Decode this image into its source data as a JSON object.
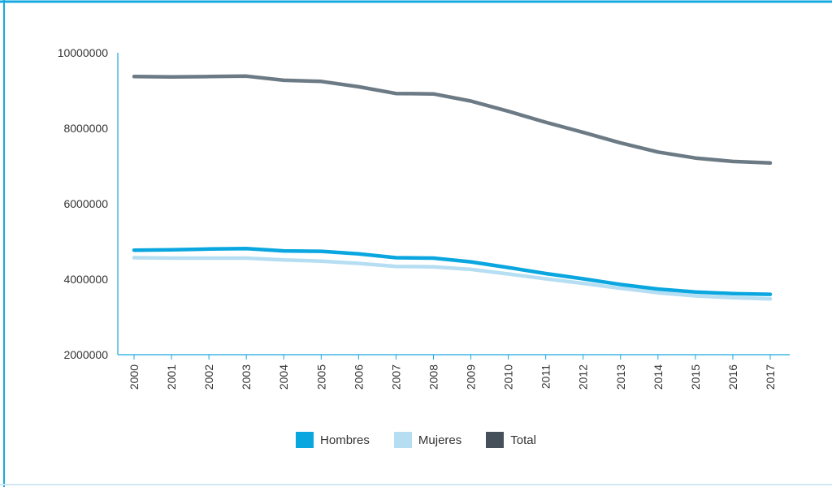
{
  "colors": {
    "border_top": "#16a9e0",
    "border_side": "#16a9e0",
    "border_bottom": "#cfe8f2",
    "axis": "#1aa7e0",
    "hombres": "#0aa6e0",
    "mujeres": "#b5def2",
    "total": "#6b7a84",
    "total_swatch": "#46505a"
  },
  "chart_data": {
    "type": "line",
    "title": "",
    "xlabel": "",
    "ylabel": "",
    "x": [
      "2000",
      "2001",
      "2002",
      "2003",
      "2004",
      "2005",
      "2006",
      "2007",
      "2008",
      "2009",
      "2010",
      "2011",
      "2012",
      "2013",
      "2014",
      "2015",
      "2016",
      "2017"
    ],
    "ylim": [
      2000000,
      10000000
    ],
    "yticks": [
      "10000000",
      "8000000",
      "6000000",
      "4000000",
      "2000000"
    ],
    "ytick_values": [
      10000000,
      8000000,
      6000000,
      4000000,
      2000000
    ],
    "grid": false,
    "legend_position": "bottom-center",
    "series": [
      {
        "name": "Hombres",
        "key": "hombres",
        "values": [
          4770000,
          4780000,
          4800000,
          4810000,
          4750000,
          4740000,
          4670000,
          4570000,
          4560000,
          4460000,
          4310000,
          4150000,
          4010000,
          3860000,
          3740000,
          3660000,
          3620000,
          3600000
        ]
      },
      {
        "name": "Mujeres",
        "key": "mujeres",
        "values": [
          4570000,
          4560000,
          4560000,
          4560000,
          4510000,
          4480000,
          4420000,
          4340000,
          4330000,
          4260000,
          4140000,
          4010000,
          3890000,
          3760000,
          3640000,
          3560000,
          3510000,
          3480000
        ]
      },
      {
        "name": "Total",
        "key": "total",
        "values": [
          9370000,
          9360000,
          9370000,
          9380000,
          9270000,
          9240000,
          9100000,
          8920000,
          8910000,
          8720000,
          8450000,
          8160000,
          7890000,
          7610000,
          7370000,
          7210000,
          7120000,
          7080000
        ]
      }
    ]
  },
  "legend": [
    {
      "label": "Hombres",
      "key": "hombres"
    },
    {
      "label": "Mujeres",
      "key": "mujeres"
    },
    {
      "label": "Total",
      "key": "total_swatch"
    }
  ]
}
